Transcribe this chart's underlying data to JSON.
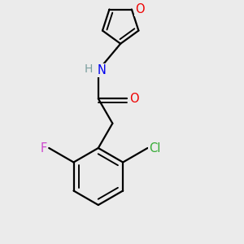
{
  "background_color": "#ebebeb",
  "atom_colors": {
    "C": "#000000",
    "H": "#7a9f9f",
    "N": "#0000ee",
    "O": "#ee0000",
    "F": "#cc44cc",
    "Cl": "#33aa33"
  },
  "bond_color": "#000000",
  "bond_width": 1.6,
  "font_size": 10.5,
  "xlim": [
    0.0,
    5.5
  ],
  "ylim": [
    0.0,
    6.0
  ],
  "figsize": [
    3.0,
    3.0
  ],
  "dpi": 100
}
